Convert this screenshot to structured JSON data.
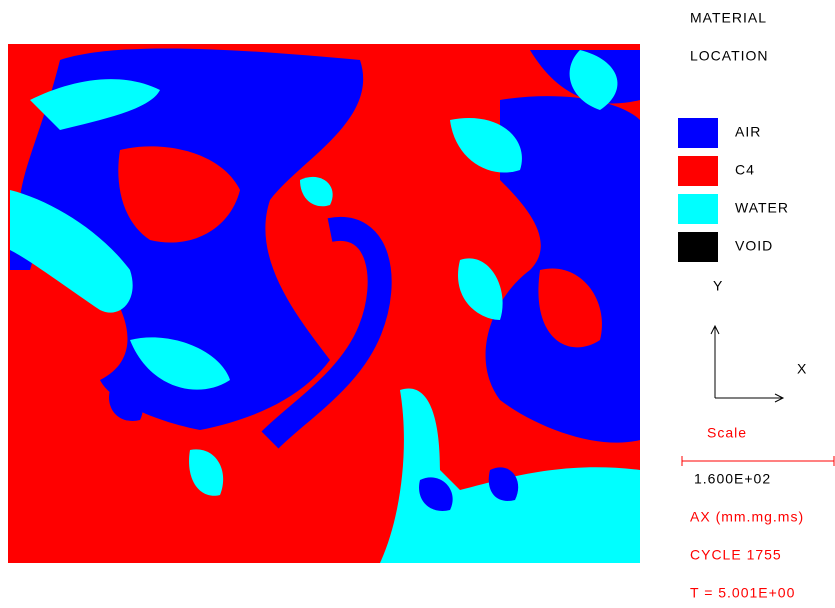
{
  "header": {
    "title": "MATERIAL",
    "subtitle": "LOCATION"
  },
  "legend": [
    {
      "label": "AIR",
      "color": "#0000ff"
    },
    {
      "label": "C4",
      "color": "#ff0000"
    },
    {
      "label": "WATER",
      "color": "#00ffff"
    },
    {
      "label": "VOID",
      "color": "#000000"
    }
  ],
  "axes": {
    "y": "Y",
    "x": "X"
  },
  "scale": {
    "title": "Scale",
    "value": "1.600E+02"
  },
  "info": [
    "AX (mm.mg.ms)",
    "CYCLE 1755",
    "T = 5.001E+00"
  ]
}
